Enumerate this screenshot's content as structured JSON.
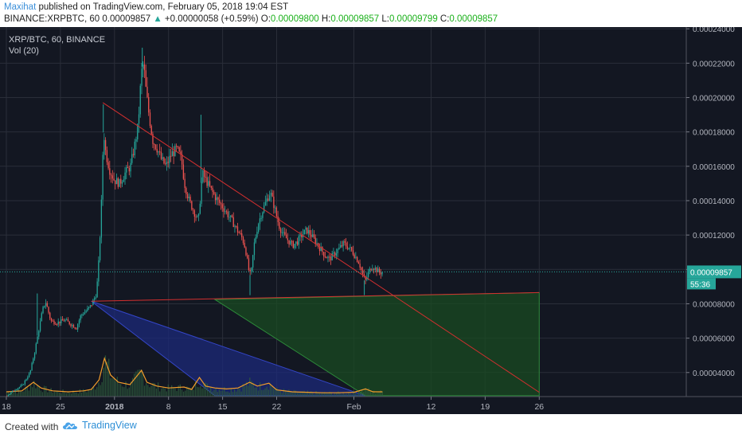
{
  "header": {
    "author": "Maxihat",
    "published": "published on TradingView.com, February 05, 2018 19:04 EST",
    "symbol": "BINANCE:XRPBTC, 60",
    "last": "0.00009857",
    "change_arrow": "▲",
    "change": "+0.00000058 (+0.59%)",
    "o_label": "O:",
    "o_value": "0.00009800",
    "h_label": "H:",
    "h_value": "0.00009857",
    "l_label": "L:",
    "l_value": "0.00009799",
    "c_label": "C:",
    "c_value": "0.00009857"
  },
  "overlay": {
    "title": "XRP/BTC, 60, BINANCE",
    "vol": "Vol (20)"
  },
  "footer": {
    "created_with": "Created with",
    "brand": "TradingView",
    "brand_icon": "tradingview-cloud-icon"
  },
  "colors": {
    "background": "#131722",
    "grid": "#2a2e39",
    "candle_up": "#26a69a",
    "candle_down": "#ef5350",
    "volume": "#2e5c3c",
    "volume_ma": "#f39c2b",
    "trendline": "#d32f2f",
    "blue_fill": "#1c2a7a",
    "green_fill": "#1a4b22",
    "price_tag": "#26a69a"
  },
  "chart_data": {
    "type": "candlestick",
    "title": "XRP/BTC, 60, BINANCE",
    "grid": true,
    "x_ticks": [
      {
        "label": "18",
        "day": 0
      },
      {
        "label": "25",
        "day": 7
      },
      {
        "label": "2018",
        "day": 14
      },
      {
        "label": "8",
        "day": 21
      },
      {
        "label": "15",
        "day": 28
      },
      {
        "label": "22",
        "day": 35
      },
      {
        "label": "Feb",
        "day": 45
      },
      {
        "label": "12",
        "day": 55
      },
      {
        "label": "19",
        "day": 62
      },
      {
        "label": "26",
        "day": 69
      }
    ],
    "y_ticks": [
      "0.00004000",
      "0.00006000",
      "0.00008000",
      "0.00010000",
      "0.00012000",
      "0.00014000",
      "0.00016000",
      "0.00018000",
      "0.00020000",
      "0.00022000",
      "0.00024000"
    ],
    "ylim": [
      2.6e-05,
      0.000241
    ],
    "price_series": [
      [
        0.0,
        2.65e-05
      ],
      [
        1.0,
        3e-05
      ],
      [
        2.0,
        3.25e-05
      ],
      [
        3.0,
        4e-05
      ],
      [
        3.6,
        5.2e-05
      ],
      [
        4.1,
        6.4e-05
      ],
      [
        4.6,
        7.6e-05
      ],
      [
        5.0,
        8.15e-05
      ],
      [
        5.7,
        7e-05
      ],
      [
        6.5,
        6.9e-05
      ],
      [
        7.5,
        7.05e-05
      ],
      [
        8.5,
        6.75e-05
      ],
      [
        9.0,
        6.6e-05
      ],
      [
        9.6,
        7.35e-05
      ],
      [
        10.2,
        7.55e-05
      ],
      [
        10.9,
        7.9e-05
      ],
      [
        11.6,
        8.6e-05
      ],
      [
        11.95,
        0.000108
      ],
      [
        12.3,
        0.000145
      ],
      [
        12.5,
        0.000182
      ],
      [
        12.8,
        0.000168
      ],
      [
        13.3,
        0.000158
      ],
      [
        13.9,
        0.000152
      ],
      [
        14.6,
        0.00015
      ],
      [
        15.3,
        0.000156
      ],
      [
        16.0,
        0.00016
      ],
      [
        16.5,
        0.000171
      ],
      [
        17.0,
        0.000184
      ],
      [
        17.4,
        0.000214
      ],
      [
        17.7,
        0.00022
      ],
      [
        18.0,
        0.000205
      ],
      [
        18.4,
        0.00019
      ],
      [
        18.9,
        0.000175
      ],
      [
        19.5,
        0.00017
      ],
      [
        20.0,
        0.000164
      ],
      [
        20.6,
        0.00016
      ],
      [
        21.3,
        0.000167
      ],
      [
        22.0,
        0.00017
      ],
      [
        22.6,
        0.000164
      ],
      [
        23.0,
        0.00015
      ],
      [
        23.6,
        0.00014
      ],
      [
        24.2,
        0.000134
      ],
      [
        24.8,
        0.000128
      ],
      [
        25.3,
        0.000156
      ],
      [
        26.0,
        0.00015
      ],
      [
        26.6,
        0.000145
      ],
      [
        27.3,
        0.00014
      ],
      [
        28.0,
        0.000136
      ],
      [
        28.6,
        0.000132
      ],
      [
        29.2,
        0.000128
      ],
      [
        29.8,
        0.000123
      ],
      [
        30.5,
        0.000118
      ],
      [
        30.9,
        0.000112
      ],
      [
        31.3,
        0.0001
      ],
      [
        31.6,
        9.6e-05
      ],
      [
        32.0,
        0.000114
      ],
      [
        32.5,
        0.000126
      ],
      [
        33.0,
        0.000133
      ],
      [
        33.6,
        0.00014
      ],
      [
        34.1,
        0.000145
      ],
      [
        34.6,
        0.000137
      ],
      [
        35.2,
        0.000126
      ],
      [
        35.8,
        0.00012
      ],
      [
        36.4,
        0.000117
      ],
      [
        37.0,
        0.000114
      ],
      [
        37.6,
        0.000116
      ],
      [
        38.2,
        0.00012
      ],
      [
        38.8,
        0.000123
      ],
      [
        39.4,
        0.00012
      ],
      [
        40.0,
        0.000116
      ],
      [
        40.6,
        0.000112
      ],
      [
        41.2,
        0.000108
      ],
      [
        41.8,
        0.000106
      ],
      [
        42.4,
        0.000109
      ],
      [
        43.0,
        0.000112
      ],
      [
        43.6,
        0.000115
      ],
      [
        44.2,
        0.000113
      ],
      [
        44.8,
        0.00011
      ],
      [
        45.2,
        0.000107
      ],
      [
        45.6,
        0.000104
      ],
      [
        46.0,
        9.8e-05
      ],
      [
        46.4,
        9.3e-05
      ],
      [
        46.8,
        9.8e-05
      ],
      [
        47.3,
        0.000102
      ],
      [
        47.8,
        0.0001
      ],
      [
        48.3,
        9.8e-05
      ],
      [
        48.7,
        9.86e-05
      ]
    ],
    "spikes": [
      {
        "day": 4.0,
        "high": 8.6e-05
      },
      {
        "day": 12.55,
        "high": 0.000196
      },
      {
        "day": 17.6,
        "high": 0.000229
      },
      {
        "day": 25.2,
        "high": 0.00019
      },
      {
        "day": 31.55,
        "high": 8.5e-05
      },
      {
        "day": 46.35,
        "high": 8.5e-05
      }
    ],
    "volume_ma": [
      [
        0,
        0.1
      ],
      [
        2,
        0.12
      ],
      [
        3.5,
        0.3
      ],
      [
        4.5,
        0.18
      ],
      [
        6,
        0.12
      ],
      [
        8,
        0.1
      ],
      [
        10,
        0.12
      ],
      [
        11,
        0.15
      ],
      [
        12,
        0.35
      ],
      [
        12.7,
        0.8
      ],
      [
        13.5,
        0.45
      ],
      [
        14.5,
        0.3
      ],
      [
        16,
        0.25
      ],
      [
        17.5,
        0.55
      ],
      [
        18.2,
        0.3
      ],
      [
        19.5,
        0.22
      ],
      [
        21,
        0.18
      ],
      [
        23,
        0.2
      ],
      [
        24,
        0.15
      ],
      [
        25,
        0.4
      ],
      [
        25.8,
        0.22
      ],
      [
        27,
        0.18
      ],
      [
        28.5,
        0.16
      ],
      [
        30,
        0.18
      ],
      [
        31.5,
        0.3
      ],
      [
        32.5,
        0.22
      ],
      [
        34,
        0.28
      ],
      [
        35,
        0.14
      ],
      [
        37,
        0.1
      ],
      [
        39,
        0.09
      ],
      [
        41,
        0.08
      ],
      [
        43,
        0.08
      ],
      [
        45,
        0.09
      ],
      [
        46.5,
        0.16
      ],
      [
        47.5,
        0.1
      ],
      [
        48.7,
        0.1
      ]
    ],
    "last_price": 9.857e-05,
    "last_price_label": "0.00009857",
    "countdown_label": "55:36",
    "drawings": [
      {
        "type": "trendline",
        "from": [
          12.5,
          0.000197
        ],
        "to": [
          69.0,
          2.85e-05
        ]
      },
      {
        "type": "support-line",
        "from": [
          11.0,
          8.15e-05
        ],
        "to": [
          69.0,
          8.65e-05
        ]
      },
      {
        "type": "triangle-fill",
        "points": [
          [
            11.0,
            8.15e-05
          ],
          [
            27.0,
            2.65e-05
          ],
          [
            46.5,
            2.65e-05
          ]
        ]
      },
      {
        "type": "triangle-fill",
        "points": [
          [
            27.0,
            8.25e-05
          ],
          [
            69.0,
            8.65e-05
          ],
          [
            69.0,
            2.65e-05
          ],
          [
            46.5,
            2.65e-05
          ]
        ]
      }
    ]
  }
}
